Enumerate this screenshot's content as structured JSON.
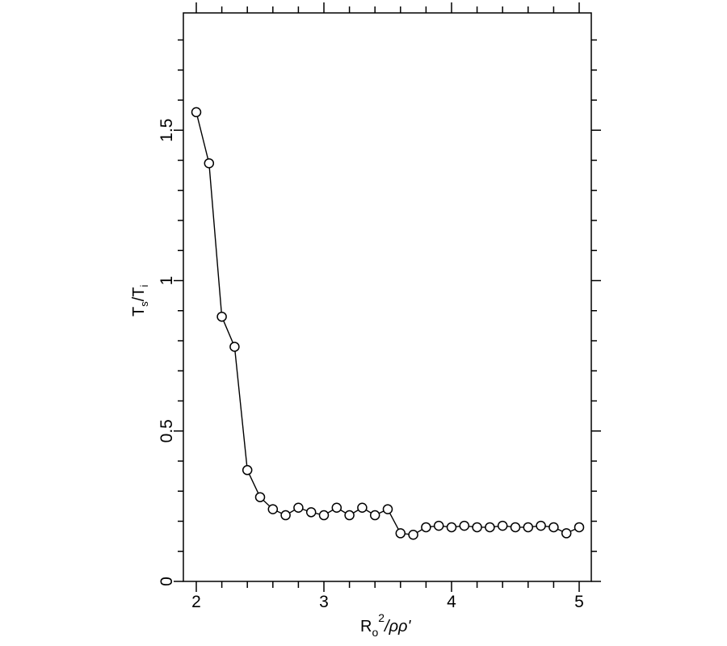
{
  "chart_data": {
    "type": "line",
    "title": "",
    "xlabel": "Ro^2/ρρ'",
    "ylabel": "Ts/Ti",
    "xlabel_parts": {
      "base": "R",
      "sub": "o",
      "sup": "2",
      "rest": "/ρρ'"
    },
    "ylabel_parts": {
      "a": "T",
      "a_sub": "s",
      "sep": "/",
      "b": "T",
      "b_sub": "i"
    },
    "xlim": [
      1.9,
      5.1
    ],
    "ylim": [
      0,
      1.89
    ],
    "xticks": [
      2,
      3,
      4,
      5
    ],
    "xtick_labels": [
      "2",
      "3",
      "4",
      "5"
    ],
    "x_minor_step": 0.2,
    "yticks": [
      0,
      0.5,
      1,
      1.5
    ],
    "ytick_labels": [
      "0",
      "0.5",
      "1",
      "1.5"
    ],
    "y_minor_step": 0.1,
    "grid": false,
    "legend": null,
    "marker": "open-circle",
    "series": [
      {
        "name": "Ts/Ti",
        "x": [
          2.0,
          2.1,
          2.2,
          2.3,
          2.4,
          2.5,
          2.6,
          2.7,
          2.8,
          2.9,
          3.0,
          3.1,
          3.2,
          3.3,
          3.4,
          3.5,
          3.6,
          3.7,
          3.8,
          3.9,
          4.0,
          4.1,
          4.2,
          4.3,
          4.4,
          4.5,
          4.6,
          4.7,
          4.8,
          4.9,
          5.0
        ],
        "values": [
          1.56,
          1.39,
          0.88,
          0.78,
          0.37,
          0.28,
          0.24,
          0.22,
          0.245,
          0.23,
          0.22,
          0.245,
          0.22,
          0.245,
          0.22,
          0.24,
          0.16,
          0.155,
          0.18,
          0.185,
          0.18,
          0.185,
          0.18,
          0.18,
          0.185,
          0.18,
          0.18,
          0.185,
          0.18,
          0.16,
          0.18
        ]
      }
    ]
  }
}
